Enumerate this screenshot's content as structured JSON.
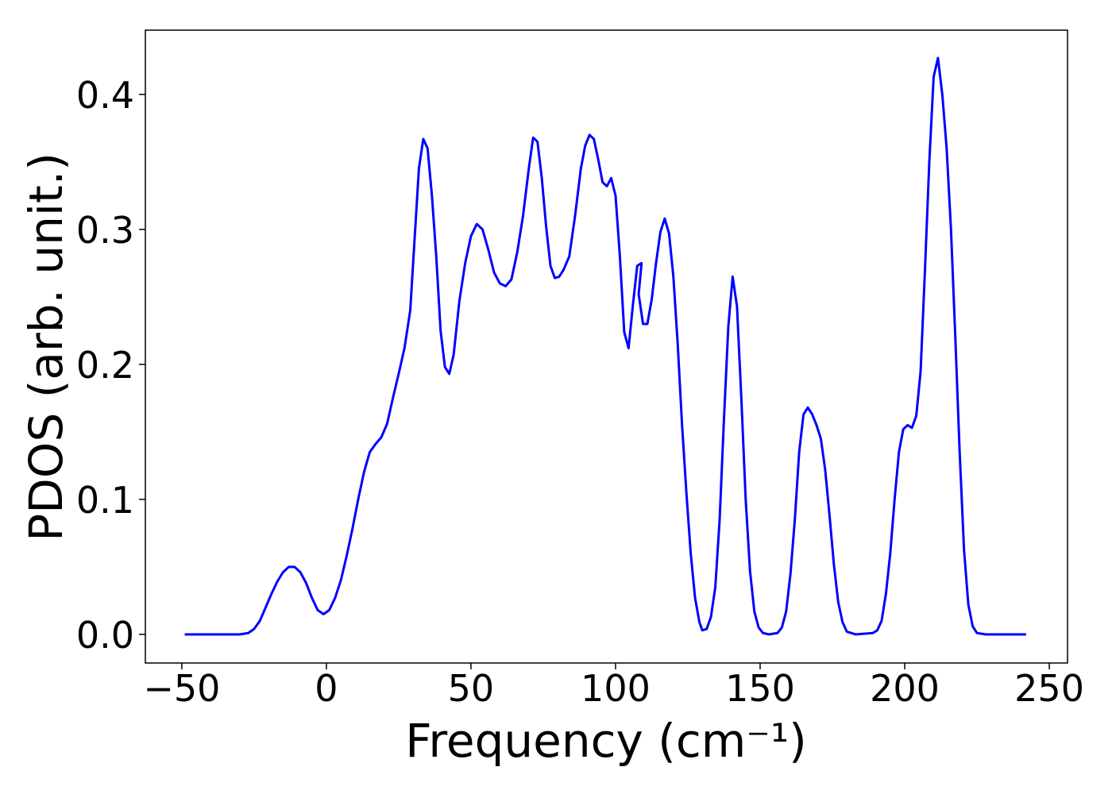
{
  "chart_data": {
    "type": "line",
    "xlabel": "Frequency (cm⁻¹)",
    "ylabel": "PDOS (arb. unit.)",
    "xlim": [
      -62.6,
      256.3
    ],
    "ylim": [
      -0.0212,
      0.4476
    ],
    "xticks": [
      {
        "value": -50,
        "label": "−50"
      },
      0,
      50,
      100,
      150,
      200,
      250
    ],
    "yticks": [
      {
        "value": 0,
        "label": "0.0"
      },
      0.1,
      0.2,
      0.3,
      0.4
    ],
    "grid": false,
    "series": [
      {
        "name": "PDOS",
        "color": "#0000ff",
        "x": [
          -49,
          -30,
          -27,
          -25,
          -23,
          -21,
          -19,
          -17,
          -15,
          -13,
          -11,
          -9,
          -7,
          -5,
          -3,
          -1,
          1,
          3,
          5,
          7,
          9,
          11,
          13,
          15,
          17,
          19,
          21,
          23,
          25,
          27,
          29,
          31,
          32,
          33.5,
          35,
          36.5,
          38,
          39.5,
          41,
          42.5,
          44,
          46,
          48,
          50,
          52,
          54,
          56,
          58,
          60,
          62,
          64,
          66,
          68,
          70,
          71.5,
          73,
          74.5,
          76,
          77.5,
          79,
          80.5,
          82,
          84,
          86,
          88,
          89.5,
          91,
          92.5,
          94,
          95.5,
          97,
          98.5,
          100,
          101.5,
          103,
          104.5,
          106,
          107.5,
          109,
          108,
          109.5,
          111,
          112.5,
          114,
          115.5,
          117,
          118.5,
          120,
          121.5,
          123,
          124.5,
          126,
          127.5,
          129,
          130,
          131.5,
          133,
          134.5,
          136,
          137.5,
          139,
          140.5,
          142,
          143.5,
          145,
          146.5,
          148,
          149.5,
          151,
          153,
          156,
          157.5,
          159,
          160.5,
          162,
          163.5,
          165,
          166.5,
          168,
          169.5,
          171,
          172.5,
          174,
          175.5,
          177,
          178.5,
          180,
          183,
          189,
          190.5,
          192,
          193.5,
          195,
          196.5,
          198,
          199.5,
          201,
          202.5,
          204,
          205.5,
          207,
          208.5,
          210,
          211.5,
          213,
          214.5,
          216,
          217.5,
          219,
          220.5,
          222,
          223.5,
          225,
          228,
          242
        ],
        "values": [
          0,
          0,
          0.001,
          0.004,
          0.01,
          0.02,
          0.03,
          0.039,
          0.046,
          0.05,
          0.05,
          0.046,
          0.038,
          0.027,
          0.018,
          0.015,
          0.018,
          0.027,
          0.04,
          0.058,
          0.078,
          0.1,
          0.12,
          0.135,
          0.141,
          0.146,
          0.156,
          0.175,
          0.193,
          0.212,
          0.24,
          0.31,
          0.345,
          0.367,
          0.36,
          0.325,
          0.28,
          0.225,
          0.198,
          0.193,
          0.207,
          0.247,
          0.275,
          0.295,
          0.304,
          0.3,
          0.285,
          0.268,
          0.26,
          0.258,
          0.263,
          0.283,
          0.31,
          0.345,
          0.368,
          0.365,
          0.338,
          0.302,
          0.273,
          0.264,
          0.265,
          0.27,
          0.28,
          0.31,
          0.345,
          0.362,
          0.37,
          0.367,
          0.352,
          0.335,
          0.332,
          0.338,
          0.325,
          0.28,
          0.224,
          0.212,
          0.244,
          0.273,
          0.275,
          0.252,
          0.23,
          0.23,
          0.248,
          0.275,
          0.298,
          0.308,
          0.297,
          0.265,
          0.215,
          0.155,
          0.105,
          0.06,
          0.027,
          0.009,
          0.003,
          0.004,
          0.013,
          0.035,
          0.085,
          0.16,
          0.228,
          0.265,
          0.243,
          0.175,
          0.1,
          0.047,
          0.017,
          0.005,
          0.001,
          0,
          0.001,
          0.005,
          0.017,
          0.045,
          0.085,
          0.135,
          0.163,
          0.168,
          0.163,
          0.155,
          0.145,
          0.122,
          0.088,
          0.052,
          0.024,
          0.009,
          0.002,
          0,
          0.001,
          0.003,
          0.01,
          0.03,
          0.06,
          0.1,
          0.135,
          0.152,
          0.155,
          0.153,
          0.162,
          0.195,
          0.27,
          0.35,
          0.413,
          0.427,
          0.4,
          0.36,
          0.3,
          0.22,
          0.135,
          0.063,
          0.022,
          0.006,
          0.001,
          0,
          0
        ]
      }
    ]
  }
}
